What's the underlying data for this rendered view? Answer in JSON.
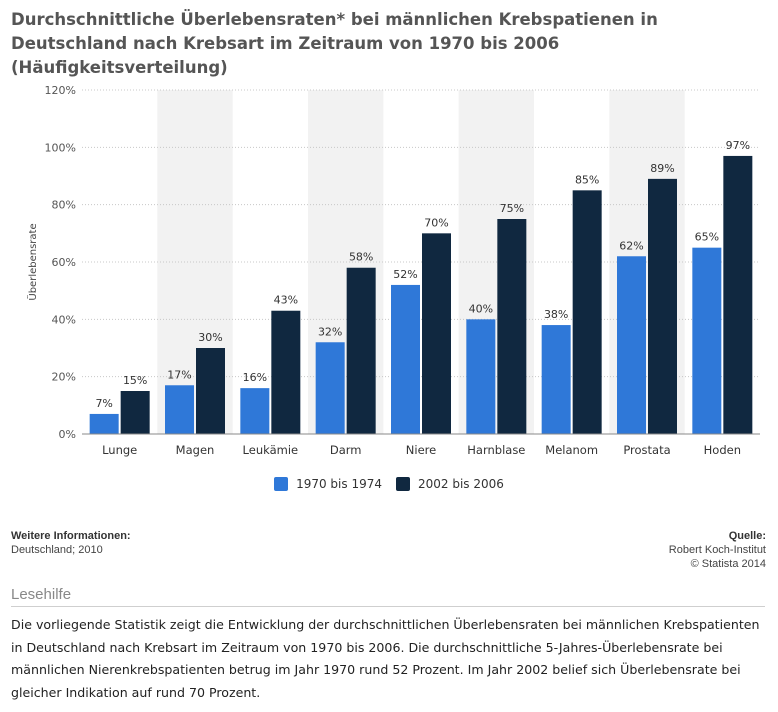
{
  "title": "Durchschnittliche Überlebensraten* bei männlichen Krebspatienen in Deutschland nach Krebsart im Zeitraum von 1970 bis 2006 (Häufigkeitsverteilung)",
  "chart_data": {
    "type": "bar",
    "title": "Durchschnittliche Überlebensraten* bei männlichen Krebspatienen in Deutschland nach Krebsart im Zeitraum von 1970 bis 2006 (Häufigkeitsverteilung)",
    "ylabel": "Überlebensrate",
    "xlabel": "",
    "ylim": [
      0,
      120
    ],
    "yticks": [
      0,
      20,
      40,
      60,
      80,
      100,
      120
    ],
    "ytick_labels": [
      "0%",
      "20%",
      "40%",
      "60%",
      "80%",
      "100%",
      "120%"
    ],
    "categories": [
      "Lunge",
      "Magen",
      "Leukämie",
      "Darm",
      "Niere",
      "Harnblase",
      "Melanom",
      "Prostata",
      "Hoden"
    ],
    "series": [
      {
        "name": "1970 bis 1974",
        "color": "#2f78d8",
        "values": [
          7,
          17,
          16,
          32,
          52,
          40,
          38,
          62,
          65
        ]
      },
      {
        "name": "2002 bis 2006",
        "color": "#102840",
        "values": [
          15,
          30,
          43,
          58,
          70,
          75,
          85,
          89,
          97
        ]
      }
    ],
    "value_suffix": "%",
    "grid": true,
    "legend_position": "bottom-center",
    "band_color": "#f2f2f2"
  },
  "info": {
    "heading": "Weitere Informationen:",
    "text": "Deutschland; 2010"
  },
  "source": {
    "heading": "Quelle:",
    "line1": "Robert Koch-Institut",
    "line2": "© Statista 2014"
  },
  "readhelp": {
    "title": "Lesehilfe",
    "text": "Die vorliegende Statistik zeigt die Entwicklung der durchschnittlichen Überlebensraten bei männlichen Krebspatienten in Deutschland nach Krebsart im Zeitraum von 1970 bis 2006. Die durchschnittliche 5-Jahres-Überlebensrate bei männlichen Nierenkrebspatienten betrug im Jahr 1970 rund 52 Prozent. Im Jahr 2002 belief sich Überlebensrate bei gleicher Indikation auf rund 70 Prozent."
  }
}
